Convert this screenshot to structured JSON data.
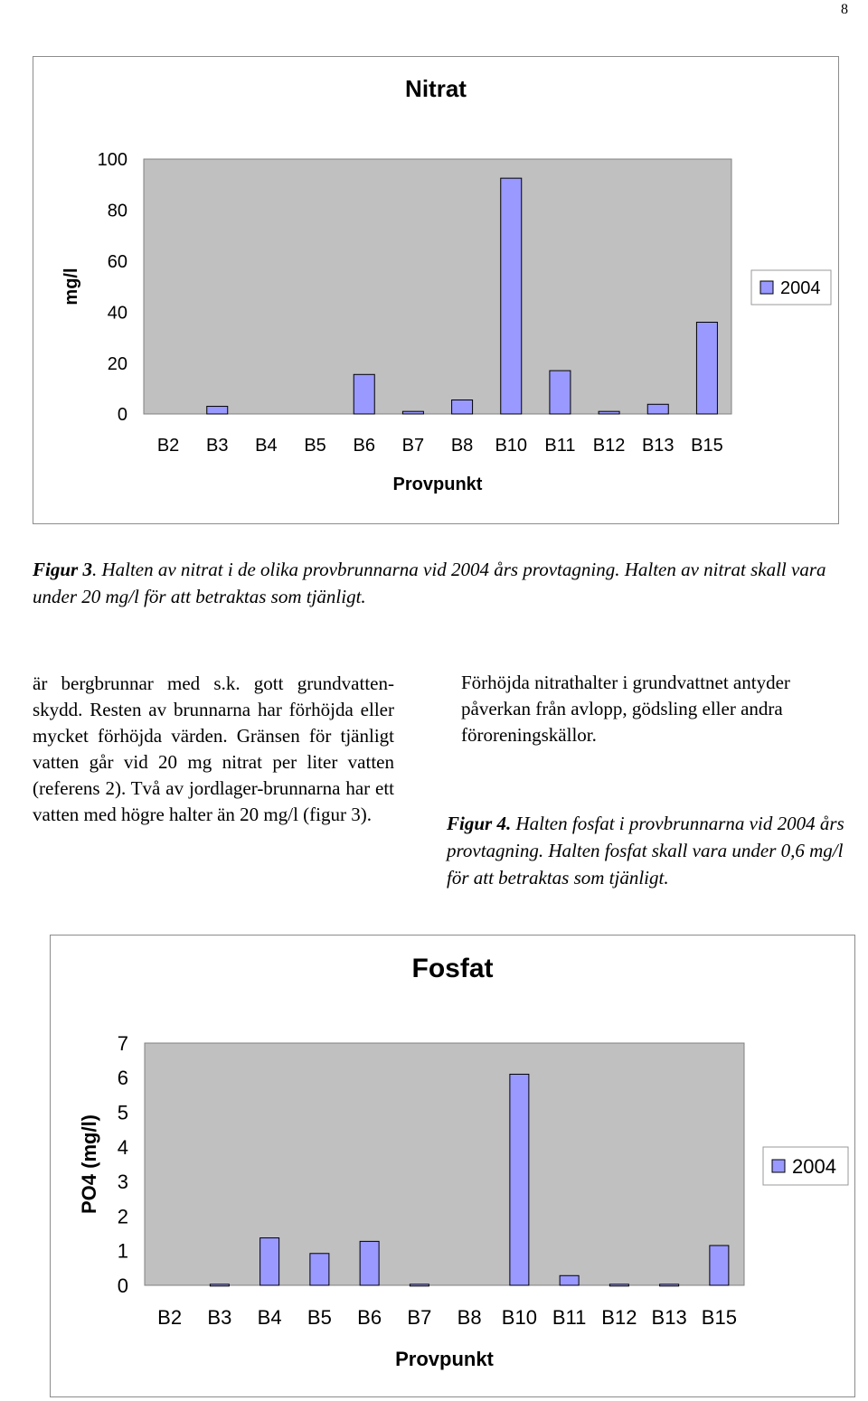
{
  "page_number": "8",
  "chart_nitrat": {
    "title": "Nitrat",
    "xlabel": "Provpunkt",
    "ylabel": "mg/l",
    "legend": "2004"
  },
  "caption3": {
    "label": "Figur 3",
    "text": ". Halten av nitrat i de olika provbrunnarna vid 2004 års provtagning. Halten av nitrat skall vara under 20 mg/l för att betraktas som tjänligt."
  },
  "body_left": "är bergbrunnar med s.k. gott grundvatten-skydd. Resten av brunnarna har förhöjda eller mycket förhöjda värden. Gränsen för tjänligt vatten går vid 20 mg nitrat per liter vatten (referens 2). Två av jordlager-brunnarna har ett vatten med högre halter än 20 mg/l (figur 3).",
  "body_right": "Förhöjda nitrathalter i grundvattnet antyder påverkan från avlopp, gödsling eller andra föroreningskällor.",
  "caption4": {
    "label": "Figur 4.",
    "text": " Halten fosfat i provbrunnarna vid 2004 års provtagning. Halten fosfat skall vara under 0,6 mg/l för att betraktas som tjänligt."
  },
  "chart_fosfat": {
    "title": "Fosfat",
    "xlabel": "Provpunkt",
    "ylabel": "PO4 (mg/l)",
    "legend": "2004"
  },
  "colors": {
    "bar": "#9999ff",
    "plot_bg": "#c0c0c0",
    "bar_stroke": "#000000"
  },
  "chart_data": [
    {
      "type": "bar",
      "title": "Nitrat",
      "xlabel": "Provpunkt",
      "ylabel": "mg/l",
      "categories": [
        "B2",
        "B3",
        "B4",
        "B5",
        "B6",
        "B7",
        "B8",
        "B10",
        "B11",
        "B12",
        "B13",
        "B15"
      ],
      "series": [
        {
          "name": "2004",
          "values": [
            0,
            3,
            0,
            0,
            15.5,
            1,
            5.5,
            92.5,
            17,
            1,
            3.8,
            36
          ]
        }
      ],
      "ylim": [
        0,
        100
      ],
      "yticks": [
        0,
        20,
        40,
        60,
        80,
        100
      ],
      "grid": false,
      "legend_position": "right"
    },
    {
      "type": "bar",
      "title": "Fosfat",
      "xlabel": "Provpunkt",
      "ylabel": "PO4 (mg/l)",
      "categories": [
        "B2",
        "B3",
        "B4",
        "B5",
        "B6",
        "B7",
        "B8",
        "B10",
        "B11",
        "B12",
        "B13",
        "B15"
      ],
      "series": [
        {
          "name": "2004",
          "values": [
            0,
            0.03,
            1.37,
            0.92,
            1.27,
            0.03,
            0,
            6.1,
            0.28,
            0.03,
            0.03,
            1.15
          ]
        }
      ],
      "ylim": [
        0,
        7
      ],
      "yticks": [
        0,
        1,
        2,
        3,
        4,
        5,
        6,
        7
      ],
      "grid": false,
      "legend_position": "right"
    }
  ]
}
